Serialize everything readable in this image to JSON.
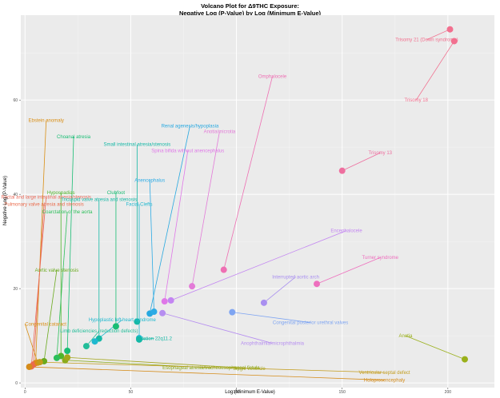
{
  "chart_data": {
    "type": "scatter",
    "title": "Volcano Plot for Δ9THC Exposure:",
    "subtitle": "Negative Log (P-Value) by Log (Minimum E-Value)",
    "xlabel": "Log (Minimum E-Value)",
    "ylabel": "Negative Log (P-Value)",
    "xlim": [
      -2,
      222
    ],
    "ylim": [
      -1,
      78
    ],
    "x_ticks": [
      0,
      50,
      100,
      150,
      200
    ],
    "x_tick_labels": [
      "0",
      "50",
      "100",
      "150",
      "200"
    ],
    "y_ticks": [
      0,
      20,
      40,
      60
    ],
    "y_tick_labels": [
      "0",
      "20",
      "40",
      "60"
    ],
    "grid": true,
    "legend": "none",
    "background": "#ebebeb",
    "points": [
      {
        "label": "Trisomy 21 (Down syndrome)",
        "x": 201,
        "y": 75,
        "color": "#f2708f",
        "lx": 190,
        "ly": 72.8
      },
      {
        "label": "Trisomy 18",
        "x": 203,
        "y": 72.5,
        "color": "#f2708f",
        "lx": 185,
        "ly": 60
      },
      {
        "label": "Omphalocele",
        "x": 94,
        "y": 24,
        "color": "#ee6fb3",
        "lx": 117,
        "ly": 65
      },
      {
        "label": "Ebstein anomaly",
        "x": 5,
        "y": 4.2,
        "color": "#d98e14",
        "lx": 10,
        "ly": 55.7
      },
      {
        "label": "Renal agenesis/hypoplasia",
        "x": 59,
        "y": 14.7,
        "color": "#27a8e0",
        "lx": 78,
        "ly": 54.5
      },
      {
        "label": "Anotia/microtia",
        "x": 79,
        "y": 20.5,
        "color": "#e37ad8",
        "lx": 92,
        "ly": 53.3
      },
      {
        "label": "Choanal atresia",
        "x": 20,
        "y": 6.8,
        "color": "#19bd74",
        "lx": 23,
        "ly": 52.2
      },
      {
        "label": "Small intestinal atresia/stenosis",
        "x": 53,
        "y": 13,
        "color": "#14b8a6",
        "lx": 53,
        "ly": 50.6
      },
      {
        "label": "Spina bifida without anencephalus",
        "x": 66,
        "y": 17.3,
        "color": "#df78e8",
        "lx": 77,
        "ly": 49.3
      },
      {
        "label": "Trisomy 13",
        "x": 150,
        "y": 45,
        "color": "#ee6f9f",
        "lx": 168,
        "ly": 48.8
      },
      {
        "label": "Anencephalus",
        "x": 61,
        "y": 15.1,
        "color": "#2cabe5",
        "lx": 59,
        "ly": 43
      },
      {
        "label": "Hypospadias",
        "x": 17,
        "y": 5.7,
        "color": "#4fb52b",
        "lx": 17,
        "ly": 40.4
      },
      {
        "label": "Clubfoot",
        "x": 43,
        "y": 12,
        "color": "#19bd74",
        "lx": 43,
        "ly": 40.4
      },
      {
        "label": "Rectal and large intestinal atresia/stenosis",
        "x": 3,
        "y": 3.5,
        "color": "#eb6a5a",
        "lx": 10,
        "ly": 39.4
      },
      {
        "label": "Tricuspid valve atresia and stenosis",
        "x": 35,
        "y": 9.4,
        "color": "#14b8a6",
        "lx": 35,
        "ly": 38.9
      },
      {
        "label": "Pulmonary valve atresia and stenosis",
        "x": 4,
        "y": 3.9,
        "color": "#ea6b4c",
        "lx": 9,
        "ly": 37.9
      },
      {
        "label": "Facial Clefts",
        "x": 54,
        "y": 9.5,
        "color": "#1fb8cf",
        "lx": 54,
        "ly": 37.9
      },
      {
        "label": "Coarctation of the aorta",
        "x": 15,
        "y": 5.3,
        "color": "#2cbf5a",
        "lx": 20,
        "ly": 36.3
      },
      {
        "label": "Encephalocele",
        "x": 69,
        "y": 17.5,
        "color": "#c385f2",
        "lx": 152,
        "ly": 32.3
      },
      {
        "label": "Turner syndrome",
        "x": 138,
        "y": 21,
        "color": "#ee6fbe",
        "lx": 168,
        "ly": 26.6
      },
      {
        "label": "Aortic valve stenosis",
        "x": 9,
        "y": 4.6,
        "color": "#6aaa1d",
        "lx": 15,
        "ly": 23.9
      },
      {
        "label": "Interrupted aortic arch",
        "x": 113,
        "y": 17,
        "color": "#a98ff0",
        "lx": 128,
        "ly": 22.5
      },
      {
        "label": "Hypoplastic left heart syndrome",
        "x": 33,
        "y": 8.8,
        "color": "#1fb8cf",
        "lx": 46,
        "ly": 13.4
      },
      {
        "label": "Congenital cataract",
        "x": 6,
        "y": 4.3,
        "color": "#d98e14",
        "lx": 0,
        "ly": 12.5
      },
      {
        "label": "Congenital posterior urethral valves",
        "x": 98,
        "y": 15,
        "color": "#7fa5f2",
        "lx": 135,
        "ly": 12.8
      },
      {
        "label": "Limb deficiencies (reduction defects)",
        "x": 29,
        "y": 7.8,
        "color": "#22bd99",
        "lx": 35,
        "ly": 11
      },
      {
        "label": "Deletion 22q11.2",
        "x": 54,
        "y": 9.2,
        "color": "#14b8a6",
        "lx": 61,
        "ly": 9.4
      },
      {
        "label": "Anophthalmia/microphthalmia",
        "x": 65,
        "y": 14.8,
        "color": "#b68ef0",
        "lx": 117,
        "ly": 8.4
      },
      {
        "label": "Anotia",
        "x": 208,
        "y": 5,
        "color": "#9ab01a",
        "lx": 180,
        "ly": 10
      },
      {
        "label": "Esophageal atresia/tracheoesophageal fistula",
        "x": 19,
        "y": 4.8,
        "color": "#8cab1a",
        "lx": 88,
        "ly": 3.2
      },
      {
        "label": "Single ventricle",
        "x": 20,
        "y": 5.4,
        "color": "#a4a61c",
        "lx": 106,
        "ly": 3.1
      },
      {
        "label": "Ventricular septal defect",
        "x": 7,
        "y": 4.4,
        "color": "#c39c1c",
        "lx": 170,
        "ly": 2.2
      },
      {
        "label": "Holoprosencephaly",
        "x": 2,
        "y": 3.4,
        "color": "#d58c1a",
        "lx": 170,
        "ly": 0.6
      }
    ]
  }
}
